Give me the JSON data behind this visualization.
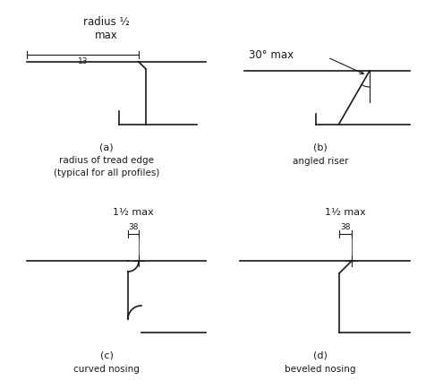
{
  "bg_color": "#ffffff",
  "line_color": "#1a1a1a",
  "text_color": "#1a1a1a",
  "fig_labels": [
    "(a)",
    "(b)",
    "(c)",
    "(d)"
  ],
  "fig_sublabels_a": [
    "radius of tread edge",
    "(typical for all profiles)"
  ],
  "fig_sublabels_b": "angled riser",
  "fig_sublabels_c": "curved nosing",
  "fig_sublabels_d": "beveled nosing",
  "panel_a_t1": "radius ½",
  "panel_a_t2": "max",
  "panel_a_t3": "13",
  "panel_b_t1": "30° max",
  "panel_cd_t1": "1½ max",
  "panel_cd_t2": "38"
}
